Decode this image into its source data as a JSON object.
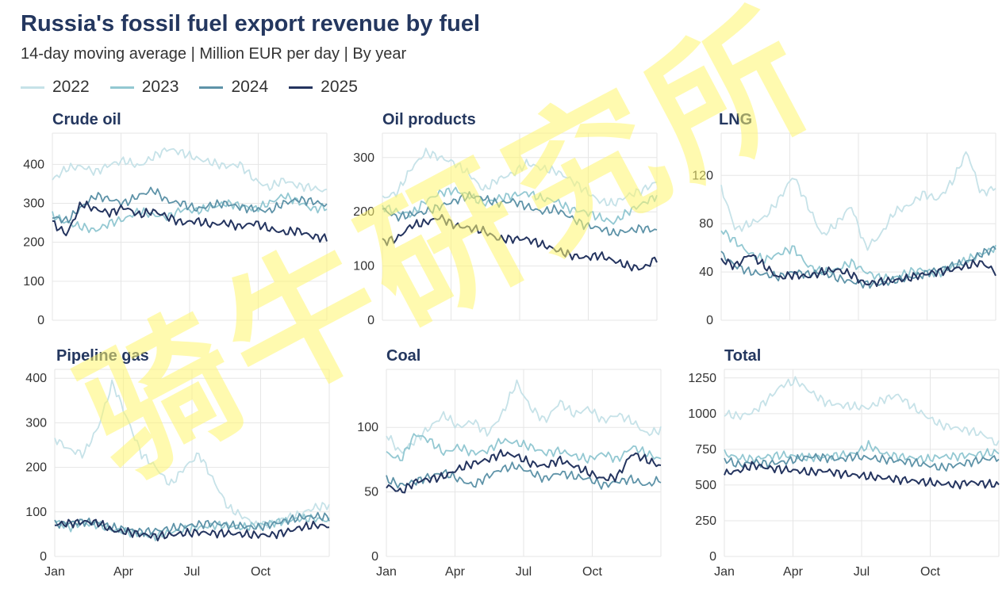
{
  "title": "Russia's fossil fuel export revenue by fuel",
  "subtitle": "14-day moving average | Million EUR per day | By year",
  "watermark": "骑牛研究所",
  "legend": [
    {
      "label": "2022",
      "color": "#c6e2e8"
    },
    {
      "label": "2023",
      "color": "#93c8d2"
    },
    {
      "label": "2024",
      "color": "#5e93a8"
    },
    {
      "label": "2025",
      "color": "#24345f"
    }
  ],
  "chart_data": [
    {
      "type": "line",
      "title": "Crude oil",
      "ylim": [
        0,
        480
      ],
      "yticks": [
        "0",
        "100",
        "200",
        "300",
        "400"
      ],
      "xticks": [],
      "series": [
        {
          "name": "2022",
          "values": [
            360,
            390,
            395,
            380,
            400,
            410,
            395,
            420,
            440,
            430,
            415,
            405,
            395,
            400,
            360,
            340,
            360,
            345,
            340,
            330
          ]
        },
        {
          "name": "2023",
          "values": [
            270,
            250,
            240,
            230,
            250,
            260,
            280,
            270,
            265,
            285,
            280,
            290,
            300,
            295,
            285,
            300,
            320,
            305,
            285,
            290
          ]
        },
        {
          "name": "2024",
          "values": [
            265,
            255,
            290,
            320,
            310,
            300,
            320,
            335,
            305,
            300,
            285,
            295,
            300,
            290,
            285,
            280,
            300,
            310,
            305,
            295
          ]
        },
        {
          "name": "2025",
          "values": [
            250,
            220,
            300,
            285,
            275,
            290,
            270,
            280,
            265,
            250,
            255,
            245,
            250,
            240,
            250,
            235,
            225,
            230,
            215,
            210
          ]
        }
      ]
    },
    {
      "type": "line",
      "title": "Oil products",
      "ylim": [
        0,
        345
      ],
      "yticks": [
        "0",
        "100",
        "200",
        "300"
      ],
      "xticks": [],
      "series": [
        {
          "name": "2022",
          "values": [
            225,
            235,
            280,
            310,
            300,
            290,
            270,
            240,
            260,
            270,
            290,
            280,
            275,
            260,
            240,
            220,
            215,
            230,
            240,
            255
          ]
        },
        {
          "name": "2023",
          "values": [
            210,
            200,
            195,
            220,
            235,
            240,
            230,
            215,
            225,
            230,
            235,
            225,
            220,
            205,
            200,
            190,
            180,
            200,
            215,
            230
          ]
        },
        {
          "name": "2024",
          "values": [
            205,
            190,
            195,
            200,
            210,
            220,
            230,
            225,
            215,
            220,
            210,
            200,
            205,
            190,
            175,
            170,
            160,
            165,
            170,
            165
          ]
        },
        {
          "name": "2025",
          "values": [
            145,
            150,
            175,
            180,
            190,
            175,
            170,
            165,
            150,
            150,
            150,
            140,
            130,
            120,
            115,
            120,
            110,
            100,
            95,
            115
          ]
        }
      ]
    },
    {
      "type": "line",
      "title": "LNG",
      "ylim": [
        0,
        155
      ],
      "yticks": [
        "0",
        "40",
        "80",
        "120"
      ],
      "xticks": [],
      "series": [
        {
          "name": "2022",
          "values": [
            110,
            75,
            80,
            85,
            100,
            120,
            95,
            70,
            80,
            95,
            60,
            70,
            90,
            95,
            105,
            100,
            115,
            140,
            105,
            110
          ]
        },
        {
          "name": "2023",
          "values": [
            75,
            65,
            55,
            50,
            55,
            60,
            45,
            40,
            42,
            48,
            40,
            35,
            35,
            40,
            42,
            38,
            45,
            50,
            55,
            60
          ]
        },
        {
          "name": "2024",
          "values": [
            55,
            45,
            40,
            38,
            36,
            40,
            38,
            40,
            35,
            32,
            30,
            30,
            33,
            35,
            38,
            42,
            45,
            48,
            55,
            60
          ]
        },
        {
          "name": "2025",
          "values": [
            50,
            45,
            55,
            45,
            35,
            38,
            36,
            40,
            42,
            38,
            30,
            32,
            33,
            35,
            38,
            40,
            42,
            45,
            48,
            40
          ]
        }
      ]
    },
    {
      "type": "line",
      "title": "Pipeline gas",
      "ylim": [
        0,
        420
      ],
      "yticks": [
        "0",
        "100",
        "200",
        "300",
        "400"
      ],
      "xticks": [
        "Jan",
        "Apr",
        "Jul",
        "Oct"
      ],
      "series": [
        {
          "name": "2022",
          "values": [
            265,
            240,
            230,
            290,
            390,
            310,
            230,
            200,
            160,
            200,
            230,
            170,
            110,
            90,
            70,
            75,
            85,
            95,
            110,
            115
          ]
        },
        {
          "name": "2023",
          "values": [
            80,
            65,
            75,
            70,
            60,
            55,
            50,
            45,
            55,
            60,
            65,
            70,
            70,
            65,
            70,
            75,
            80,
            85,
            85,
            80
          ]
        },
        {
          "name": "2024",
          "values": [
            72,
            75,
            78,
            75,
            65,
            60,
            55,
            58,
            62,
            68,
            72,
            75,
            70,
            68,
            65,
            72,
            80,
            88,
            90,
            88
          ]
        },
        {
          "name": "2025",
          "values": [
            72,
            74,
            78,
            76,
            58,
            55,
            50,
            45,
            48,
            52,
            54,
            52,
            52,
            50,
            48,
            48,
            55,
            65,
            70,
            68
          ]
        }
      ]
    },
    {
      "type": "line",
      "title": "Coal",
      "ylim": [
        0,
        145
      ],
      "yticks": [
        "0",
        "50",
        "100"
      ],
      "xticks": [
        "Jan",
        "Apr",
        "Jul",
        "Oct"
      ],
      "series": [
        {
          "name": "2022",
          "values": [
            95,
            80,
            90,
            100,
            110,
            100,
            105,
            95,
            110,
            135,
            115,
            105,
            120,
            110,
            115,
            105,
            110,
            105,
            95,
            98
          ]
        },
        {
          "name": "2023",
          "values": [
            80,
            75,
            95,
            90,
            80,
            85,
            80,
            82,
            90,
            88,
            85,
            80,
            82,
            78,
            75,
            80,
            75,
            85,
            80,
            75
          ]
        },
        {
          "name": "2024",
          "values": [
            60,
            55,
            58,
            62,
            65,
            60,
            55,
            62,
            68,
            70,
            65,
            60,
            65,
            62,
            60,
            55,
            58,
            60,
            55,
            60
          ]
        },
        {
          "name": "2025",
          "values": [
            55,
            50,
            58,
            60,
            62,
            68,
            72,
            75,
            80,
            78,
            72,
            70,
            75,
            70,
            65,
            60,
            62,
            80,
            75,
            70
          ]
        }
      ]
    },
    {
      "type": "line",
      "title": "Total",
      "ylim": [
        0,
        1310
      ],
      "yticks": [
        "0",
        "250",
        "500",
        "750",
        "1000",
        "1250"
      ],
      "xticks": [
        "Jan",
        "Apr",
        "Jul",
        "Oct"
      ],
      "series": [
        {
          "name": "2022",
          "values": [
            1000,
            980,
            1010,
            1100,
            1200,
            1230,
            1150,
            1080,
            1060,
            1050,
            1040,
            1100,
            1130,
            1050,
            980,
            920,
            900,
            880,
            850,
            780
          ]
        },
        {
          "name": "2023",
          "values": [
            720,
            690,
            680,
            700,
            710,
            700,
            690,
            700,
            710,
            720,
            780,
            720,
            700,
            690,
            680,
            700,
            700,
            710,
            720,
            730
          ]
        },
        {
          "name": "2024",
          "values": [
            680,
            640,
            660,
            650,
            660,
            680,
            700,
            690,
            680,
            700,
            690,
            680,
            670,
            660,
            640,
            620,
            640,
            660,
            680,
            690
          ]
        },
        {
          "name": "2025",
          "values": [
            580,
            600,
            640,
            620,
            610,
            600,
            590,
            600,
            580,
            570,
            560,
            550,
            540,
            530,
            520,
            510,
            500,
            520,
            510,
            500
          ]
        }
      ]
    }
  ]
}
